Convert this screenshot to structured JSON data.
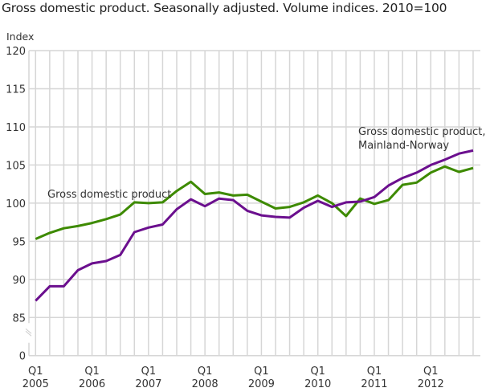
{
  "chart_data": {
    "type": "line",
    "title": "Gross domestic product. Seasonally adjusted. Volume indices. 2010=100",
    "ylabel": "Index",
    "xlabel": "",
    "ylim": [
      85,
      120
    ],
    "y_axis_break": true,
    "y_ticks": [
      "0",
      "85",
      "90",
      "95",
      "100",
      "105",
      "110",
      "115",
      "120"
    ],
    "y_tick_values": [
      85,
      90,
      95,
      100,
      105,
      110,
      115,
      120
    ],
    "x_tick_labels": [
      {
        "q": "Q1",
        "year": "2005",
        "index": 0
      },
      {
        "q": "Q1",
        "year": "2006",
        "index": 4
      },
      {
        "q": "Q1",
        "year": "2007",
        "index": 8
      },
      {
        "q": "Q1",
        "year": "2008",
        "index": 12
      },
      {
        "q": "Q1",
        "year": "2009",
        "index": 16
      },
      {
        "q": "Q1",
        "year": "2010",
        "index": 20
      },
      {
        "q": "Q1",
        "year": "2011",
        "index": 24
      },
      {
        "q": "Q1",
        "year": "2012",
        "index": 28
      }
    ],
    "x_range": "2005Q1-2012Q4",
    "grid": true,
    "legend": "inline labels",
    "series": [
      {
        "name": "Gross domestic product",
        "label_lines": [
          "Gross domestic product"
        ],
        "color": "#3d8a00",
        "values": [
          95.3,
          96.1,
          96.7,
          97.0,
          97.4,
          97.9,
          98.5,
          100.1,
          100.0,
          100.1,
          101.6,
          102.8,
          101.2,
          101.4,
          101.0,
          101.1,
          100.2,
          99.3,
          99.5,
          100.1,
          101.0,
          100.0,
          98.3,
          100.6,
          99.9,
          100.4,
          102.4,
          102.7,
          104.0,
          104.8,
          104.1,
          104.6
        ]
      },
      {
        "name": "Gross domestic product, Mainland-Norway",
        "label_lines": [
          "Gross domestic product,",
          "Mainland-Norway"
        ],
        "color": "#6b0f8e",
        "values": [
          87.2,
          89.1,
          89.1,
          91.2,
          92.1,
          92.4,
          93.2,
          96.2,
          96.8,
          97.2,
          99.2,
          100.5,
          99.6,
          100.6,
          100.4,
          99.0,
          98.4,
          98.2,
          98.1,
          99.4,
          100.3,
          99.5,
          100.1,
          100.2,
          100.8,
          102.3,
          103.3,
          104.0,
          105.0,
          105.7,
          106.5,
          106.9
        ]
      }
    ]
  }
}
